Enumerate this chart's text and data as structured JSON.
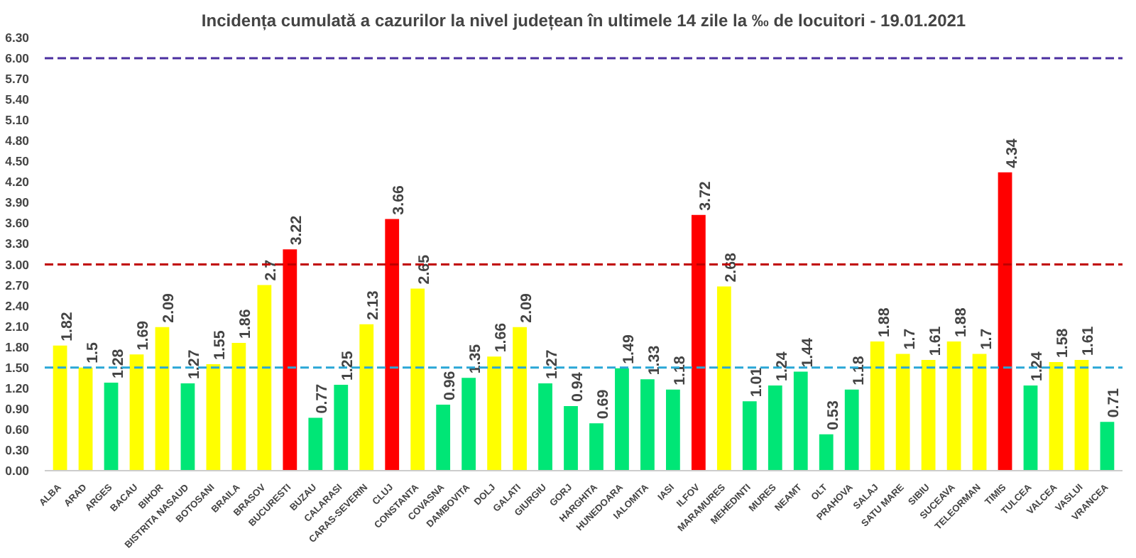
{
  "chart_data": {
    "type": "bar",
    "title": "Incidența cumulată a cazurilor la nivel județean în ultimele 14 zile la ‰ de locuitori - 19.01.2021",
    "categories": [
      "ALBA",
      "ARAD",
      "ARGES",
      "BACAU",
      "BIHOR",
      "BISTRITA NASAUD",
      "BOTOSANI",
      "BRAILA",
      "BRASOV",
      "BUCURESTI",
      "BUZAU",
      "CALARASI",
      "CARAS-SEVERIN",
      "CLUJ",
      "CONSTANTA",
      "COVASNA",
      "DAMBOVITA",
      "DOLJ",
      "GALATI",
      "GIURGIU",
      "GORJ",
      "HARGHITA",
      "HUNEDOARA",
      "IALOMITA",
      "IASI",
      "ILFOV",
      "MARAMURES",
      "MEHEDINTI",
      "MURES",
      "NEAMT",
      "OLT",
      "PRAHOVA",
      "SALAJ",
      "SATU MARE",
      "SIBIU",
      "SUCEAVA",
      "TELEORMAN",
      "TIMIS",
      "TULCEA",
      "VALCEA",
      "VASLUI",
      "VRANCEA"
    ],
    "values": [
      1.82,
      1.5,
      1.28,
      1.69,
      2.09,
      1.27,
      1.55,
      1.86,
      2.7,
      3.22,
      0.77,
      1.25,
      2.13,
      3.66,
      2.65,
      0.96,
      1.35,
      1.66,
      2.09,
      1.27,
      0.94,
      0.69,
      1.49,
      1.33,
      1.18,
      3.72,
      2.68,
      1.01,
      1.24,
      1.44,
      0.53,
      1.18,
      1.88,
      1.7,
      1.61,
      1.88,
      1.7,
      4.34,
      1.24,
      1.58,
      1.61,
      0.71
    ],
    "colors": [
      "#ffff00",
      "#ffff00",
      "#00e676",
      "#ffff00",
      "#ffff00",
      "#00e676",
      "#ffff00",
      "#ffff00",
      "#ffff00",
      "#ff0000",
      "#00e676",
      "#00e676",
      "#ffff00",
      "#ff0000",
      "#ffff00",
      "#00e676",
      "#00e676",
      "#ffff00",
      "#ffff00",
      "#00e676",
      "#00e676",
      "#00e676",
      "#00e676",
      "#00e676",
      "#00e676",
      "#ff0000",
      "#ffff00",
      "#00e676",
      "#00e676",
      "#00e676",
      "#00e676",
      "#00e676",
      "#ffff00",
      "#ffff00",
      "#ffff00",
      "#ffff00",
      "#ffff00",
      "#ff0000",
      "#00e676",
      "#ffff00",
      "#ffff00",
      "#00e676"
    ],
    "ylim": [
      0,
      6.3
    ],
    "yticks": [
      {
        "value": 0,
        "label": "0.00"
      },
      {
        "value": 0.3,
        "label": "0.30"
      },
      {
        "value": 0.6,
        "label": "0.60"
      },
      {
        "value": 0.9,
        "label": "0.90"
      },
      {
        "value": 1.2,
        "label": "1.20"
      },
      {
        "value": 1.5,
        "label": "1.50"
      },
      {
        "value": 1.8,
        "label": "1.80"
      },
      {
        "value": 2.1,
        "label": "2.10"
      },
      {
        "value": 2.4,
        "label": "2.40"
      },
      {
        "value": 2.7,
        "label": "2.70"
      },
      {
        "value": 3.0,
        "label": "3.00"
      },
      {
        "value": 3.3,
        "label": "3.30"
      },
      {
        "value": 3.6,
        "label": "3.60"
      },
      {
        "value": 3.9,
        "label": "3.90"
      },
      {
        "value": 4.2,
        "label": "4.20"
      },
      {
        "value": 4.5,
        "label": "4.50"
      },
      {
        "value": 4.8,
        "label": "4.80"
      },
      {
        "value": 5.1,
        "label": "5.10"
      },
      {
        "value": 5.4,
        "label": "5.40"
      },
      {
        "value": 5.7,
        "label": "5.70"
      },
      {
        "value": 6.0,
        "label": "6.00"
      },
      {
        "value": 6.3,
        "label": "6.30"
      }
    ],
    "ref_lines": [
      {
        "axis": "y",
        "value": 1.5,
        "color": "#2aa7d6",
        "line_style": "dashed"
      },
      {
        "axis": "y",
        "value": 3.0,
        "color": "#c00000",
        "line_style": "dashed"
      },
      {
        "axis": "y",
        "value": 6.0,
        "color": "#4b2fa0",
        "line_style": "dashed"
      }
    ],
    "data_labels": true,
    "grid": false
  }
}
